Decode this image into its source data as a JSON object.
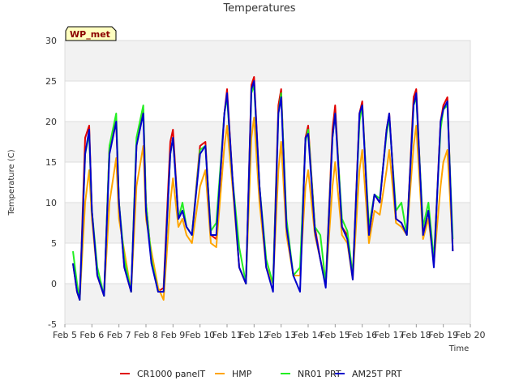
{
  "chart_data": {
    "type": "line",
    "title": "Temperatures",
    "xlabel": "Time",
    "ylabel": "Temperature (C)",
    "ylim": [
      -5,
      30
    ],
    "yticks": [
      -5,
      0,
      5,
      10,
      15,
      20,
      25,
      30
    ],
    "xlim": [
      5,
      20
    ],
    "xticks": [
      5,
      6,
      7,
      8,
      9,
      10,
      11,
      12,
      13,
      14,
      15,
      16,
      17,
      18,
      19,
      20
    ],
    "xtick_labels": [
      "Feb 5",
      "Feb 6",
      "Feb 7",
      "Feb 8",
      "Feb 9",
      "Feb 10",
      "Feb 11",
      "Feb 12",
      "Feb 13",
      "Feb 14",
      "Feb 15",
      "Feb 16",
      "Feb 17",
      "Feb 18",
      "Feb 19",
      "Feb 20"
    ],
    "badge": "WP_met",
    "x": [
      5.3,
      5.45,
      5.55,
      5.75,
      5.9,
      6.0,
      6.2,
      6.45,
      6.65,
      6.9,
      7.0,
      7.2,
      7.45,
      7.65,
      7.9,
      8.0,
      8.2,
      8.45,
      8.65,
      8.9,
      9.0,
      9.2,
      9.35,
      9.5,
      9.7,
      10.0,
      10.2,
      10.4,
      10.6,
      10.9,
      11.0,
      11.2,
      11.45,
      11.7,
      11.9,
      12.0,
      12.2,
      12.45,
      12.7,
      12.9,
      13.0,
      13.2,
      13.45,
      13.7,
      13.9,
      14.0,
      14.25,
      14.45,
      14.65,
      14.9,
      15.0,
      15.25,
      15.45,
      15.65,
      15.9,
      16.0,
      16.25,
      16.45,
      16.65,
      16.9,
      17.0,
      17.25,
      17.45,
      17.65,
      17.9,
      18.0,
      18.25,
      18.45,
      18.65,
      18.9,
      19.0,
      19.15,
      19.35
    ],
    "series": [
      {
        "name": "CR1000 panelT",
        "color": "#e00000",
        "values": [
          2.5,
          -1,
          -2,
          18,
          19.5,
          9,
          1,
          -1.5,
          17,
          20,
          10,
          2,
          -1,
          17,
          21.5,
          10,
          3,
          -1,
          -0.5,
          17.5,
          19,
          8,
          9,
          7,
          6,
          17,
          17.5,
          6,
          5.5,
          21,
          24,
          13,
          2,
          0,
          24.5,
          25.5,
          12,
          2,
          0,
          22,
          24,
          7,
          1,
          1,
          18,
          19.5,
          7,
          3,
          0,
          19,
          22,
          7,
          6,
          1,
          21,
          22.5,
          6,
          11,
          10,
          19,
          21,
          8,
          7.5,
          6,
          23,
          24,
          6,
          9,
          2.5,
          20,
          22,
          23,
          4
        ]
      },
      {
        "name": "HMP",
        "color": "#ffa500",
        "values": [
          2.5,
          -1,
          -2,
          10,
          14,
          8,
          1,
          -1.5,
          10,
          15.5,
          8,
          4,
          -1,
          12,
          17,
          8,
          4,
          -0.5,
          -2,
          10,
          13,
          7,
          8,
          6,
          5,
          12,
          14,
          5,
          4.5,
          17,
          19.5,
          12,
          2,
          0,
          18,
          20.5,
          10,
          2,
          0,
          14,
          17.5,
          6,
          1,
          1,
          12,
          14,
          6,
          3,
          0,
          12,
          15,
          6,
          5,
          0.5,
          14,
          16.5,
          5,
          9,
          8.5,
          14,
          16.5,
          7.5,
          7,
          6,
          17,
          19.5,
          5.5,
          8,
          2.5,
          12,
          15,
          16.5,
          4.5
        ]
      },
      {
        "name": "NR01 PRT",
        "color": "#22ee22",
        "values": [
          4,
          0,
          -2,
          16,
          18.5,
          9,
          2,
          -1.5,
          17,
          21,
          10,
          3,
          -1,
          18,
          22,
          10,
          3,
          -1,
          -1,
          16,
          18,
          8,
          10,
          7,
          6,
          16.5,
          17,
          6.5,
          7.5,
          21,
          23,
          13,
          4.5,
          0,
          23.5,
          24.5,
          12,
          3,
          0,
          21,
          23.5,
          8,
          1,
          2,
          17.5,
          19,
          7,
          6,
          0,
          18,
          21,
          8,
          6.5,
          1,
          20,
          22,
          7,
          11,
          10.5,
          18.5,
          20.5,
          9,
          10,
          6,
          22,
          23,
          7,
          10,
          3,
          19,
          21.5,
          22,
          5.5
        ]
      },
      {
        "name": "AM25T PRT",
        "color": "#0000cc",
        "values": [
          2.5,
          -1,
          -2,
          16,
          19,
          9,
          1,
          -1.5,
          16,
          20,
          10,
          2,
          -1,
          17,
          21,
          9,
          2.5,
          -1,
          -1,
          16,
          18,
          8,
          9,
          7,
          6,
          16,
          17,
          6,
          6,
          21,
          23.5,
          13,
          2,
          0,
          24,
          25,
          12,
          2,
          -1,
          21,
          23,
          7,
          1,
          -1,
          18,
          18.5,
          6.5,
          3,
          -0.5,
          18,
          21,
          7,
          5.5,
          0.5,
          21,
          22,
          6,
          11,
          10,
          19,
          21,
          8,
          7.5,
          6,
          22,
          23.5,
          6,
          9,
          2,
          20,
          21.5,
          22.5,
          4
        ]
      }
    ]
  }
}
